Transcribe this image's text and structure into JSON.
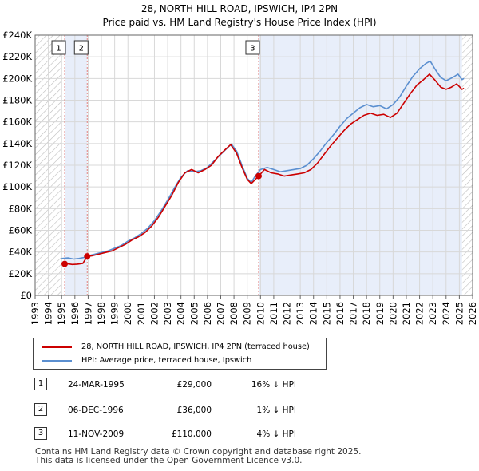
{
  "chart_data": {
    "type": "line",
    "title": "28, NORTH HILL ROAD, IPSWICH, IP4 2PN",
    "subtitle": "Price paid vs. HM Land Registry's House Price Index (HPI)",
    "xlabel": "",
    "ylabel": "",
    "xlim": [
      1993,
      2026
    ],
    "ylim": [
      0,
      240000
    ],
    "y_ticks": [
      {
        "value": 0,
        "label": "£0"
      },
      {
        "value": 20000,
        "label": "£20K"
      },
      {
        "value": 40000,
        "label": "£40K"
      },
      {
        "value": 60000,
        "label": "£60K"
      },
      {
        "value": 80000,
        "label": "£80K"
      },
      {
        "value": 100000,
        "label": "£100K"
      },
      {
        "value": 120000,
        "label": "£120K"
      },
      {
        "value": 140000,
        "label": "£140K"
      },
      {
        "value": 160000,
        "label": "£160K"
      },
      {
        "value": 180000,
        "label": "£180K"
      },
      {
        "value": 200000,
        "label": "£200K"
      },
      {
        "value": 220000,
        "label": "£220K"
      },
      {
        "value": 240000,
        "label": "£240K"
      }
    ],
    "x_ticks": [
      "1993",
      "1994",
      "1995",
      "1996",
      "1997",
      "1998",
      "1999",
      "2000",
      "2001",
      "2002",
      "2003",
      "2004",
      "2005",
      "2006",
      "2007",
      "2008",
      "2009",
      "2010",
      "2011",
      "2012",
      "2013",
      "2014",
      "2015",
      "2016",
      "2017",
      "2018",
      "2019",
      "2020",
      "2021",
      "2022",
      "2023",
      "2024",
      "2025",
      "2026"
    ],
    "colors": {
      "price_paid": "#cc0000",
      "hpi": "#5b8fd0",
      "shade": "#e8eefa",
      "hatch": "#b8b8b8",
      "vline": "#e08080",
      "grid": "#d8d8d8"
    },
    "series": [
      {
        "name": "28, NORTH HILL ROAD, IPSWICH, IP4 2PN (terraced house)",
        "color": "#cc0000",
        "points": [
          [
            1995.23,
            29000
          ],
          [
            1995.5,
            29000
          ],
          [
            1995.8,
            28500
          ],
          [
            1996.2,
            28800
          ],
          [
            1996.6,
            29500
          ],
          [
            1996.93,
            36000
          ],
          [
            1997.3,
            36500
          ],
          [
            1997.8,
            38000
          ],
          [
            1998.3,
            39500
          ],
          [
            1998.8,
            41000
          ],
          [
            1999.3,
            44000
          ],
          [
            1999.8,
            47000
          ],
          [
            2000.3,
            51000
          ],
          [
            2000.8,
            54000
          ],
          [
            2001.3,
            58000
          ],
          [
            2001.8,
            64000
          ],
          [
            2002.3,
            72000
          ],
          [
            2002.8,
            82000
          ],
          [
            2003.3,
            92000
          ],
          [
            2003.8,
            104000
          ],
          [
            2004.3,
            113000
          ],
          [
            2004.8,
            116000
          ],
          [
            2005.3,
            113000
          ],
          [
            2005.8,
            116000
          ],
          [
            2006.3,
            120000
          ],
          [
            2006.8,
            128000
          ],
          [
            2007.3,
            134000
          ],
          [
            2007.75,
            139000
          ],
          [
            2008.2,
            131000
          ],
          [
            2008.6,
            118000
          ],
          [
            2009.0,
            107000
          ],
          [
            2009.3,
            103000
          ],
          [
            2009.86,
            110000
          ],
          [
            2010.3,
            116000
          ],
          [
            2010.8,
            113000
          ],
          [
            2011.3,
            112000
          ],
          [
            2011.8,
            110000
          ],
          [
            2012.3,
            111000
          ],
          [
            2012.8,
            112000
          ],
          [
            2013.3,
            113000
          ],
          [
            2013.8,
            116000
          ],
          [
            2014.3,
            122000
          ],
          [
            2014.8,
            130000
          ],
          [
            2015.3,
            138000
          ],
          [
            2015.8,
            145000
          ],
          [
            2016.3,
            152000
          ],
          [
            2016.8,
            158000
          ],
          [
            2017.3,
            162000
          ],
          [
            2017.8,
            166000
          ],
          [
            2018.3,
            168000
          ],
          [
            2018.8,
            166000
          ],
          [
            2019.3,
            167000
          ],
          [
            2019.8,
            164000
          ],
          [
            2020.3,
            168000
          ],
          [
            2020.8,
            177000
          ],
          [
            2021.3,
            186000
          ],
          [
            2021.8,
            194000
          ],
          [
            2022.3,
            199000
          ],
          [
            2022.75,
            204000
          ],
          [
            2023.2,
            198000
          ],
          [
            2023.6,
            192000
          ],
          [
            2024.0,
            190000
          ],
          [
            2024.4,
            192000
          ],
          [
            2024.8,
            195000
          ],
          [
            2025.2,
            190000
          ],
          [
            2025.35,
            191000
          ]
        ]
      },
      {
        "name": "HPI: Average price, terraced house, Ipswich",
        "color": "#5b8fd0",
        "points": [
          [
            1995.0,
            34000
          ],
          [
            1995.5,
            34500
          ],
          [
            1995.9,
            33500
          ],
          [
            1996.3,
            34000
          ],
          [
            1996.7,
            35000
          ],
          [
            1997.0,
            36500
          ],
          [
            1997.5,
            38000
          ],
          [
            1998.0,
            39500
          ],
          [
            1998.5,
            41000
          ],
          [
            1999.0,
            43500
          ],
          [
            1999.5,
            46000
          ],
          [
            2000.0,
            50000
          ],
          [
            2000.5,
            53000
          ],
          [
            2001.0,
            57000
          ],
          [
            2001.5,
            62000
          ],
          [
            2002.0,
            69000
          ],
          [
            2002.5,
            78000
          ],
          [
            2003.0,
            88000
          ],
          [
            2003.5,
            99000
          ],
          [
            2004.0,
            109000
          ],
          [
            2004.5,
            115000
          ],
          [
            2005.0,
            114000
          ],
          [
            2005.5,
            115000
          ],
          [
            2006.0,
            118000
          ],
          [
            2006.5,
            124000
          ],
          [
            2007.0,
            130000
          ],
          [
            2007.5,
            136000
          ],
          [
            2007.8,
            139500
          ],
          [
            2008.2,
            133000
          ],
          [
            2008.6,
            120000
          ],
          [
            2009.0,
            108000
          ],
          [
            2009.3,
            104000
          ],
          [
            2009.6,
            110000
          ],
          [
            2010.0,
            116000
          ],
          [
            2010.5,
            118000
          ],
          [
            2011.0,
            116000
          ],
          [
            2011.5,
            114000
          ],
          [
            2012.0,
            115000
          ],
          [
            2012.5,
            116000
          ],
          [
            2013.0,
            117000
          ],
          [
            2013.5,
            120000
          ],
          [
            2014.0,
            126000
          ],
          [
            2014.5,
            133000
          ],
          [
            2015.0,
            141000
          ],
          [
            2015.5,
            148000
          ],
          [
            2016.0,
            156000
          ],
          [
            2016.5,
            163000
          ],
          [
            2017.0,
            168000
          ],
          [
            2017.5,
            173000
          ],
          [
            2018.0,
            176000
          ],
          [
            2018.5,
            174000
          ],
          [
            2019.0,
            175000
          ],
          [
            2019.5,
            172000
          ],
          [
            2020.0,
            176000
          ],
          [
            2020.5,
            183000
          ],
          [
            2021.0,
            193000
          ],
          [
            2021.5,
            202000
          ],
          [
            2022.0,
            209000
          ],
          [
            2022.5,
            214000
          ],
          [
            2022.8,
            216000
          ],
          [
            2023.2,
            208000
          ],
          [
            2023.6,
            201000
          ],
          [
            2024.0,
            198000
          ],
          [
            2024.5,
            201000
          ],
          [
            2024.9,
            204000
          ],
          [
            2025.2,
            199000
          ],
          [
            2025.35,
            200000
          ]
        ]
      }
    ],
    "sales": [
      {
        "marker": "1",
        "date": 1995.23,
        "price": 29000
      },
      {
        "marker": "2",
        "date": 1996.93,
        "price": 36000
      },
      {
        "marker": "3",
        "date": 2009.86,
        "price": 110000
      }
    ],
    "shaded_ranges": [
      [
        1995.23,
        1996.93
      ],
      [
        2009.86,
        2025.2
      ]
    ],
    "hatched_ranges": [
      [
        1993,
        1995.0
      ],
      [
        2025.2,
        2026
      ]
    ]
  },
  "legend": {
    "price_paid_label": "28, NORTH HILL ROAD, IPSWICH, IP4 2PN (terraced house)",
    "hpi_label": "HPI: Average price, terraced house, Ipswich"
  },
  "transactions": [
    {
      "num": "1",
      "date": "24-MAR-1995",
      "price": "£29,000",
      "hpi": "16% ↓ HPI"
    },
    {
      "num": "2",
      "date": "06-DEC-1996",
      "price": "£36,000",
      "hpi": "1% ↓ HPI"
    },
    {
      "num": "3",
      "date": "11-NOV-2009",
      "price": "£110,000",
      "hpi": "4% ↓ HPI"
    }
  ],
  "footer": {
    "line1": "Contains HM Land Registry data © Crown copyright and database right 2025.",
    "line2": "This data is licensed under the Open Government Licence v3.0."
  }
}
